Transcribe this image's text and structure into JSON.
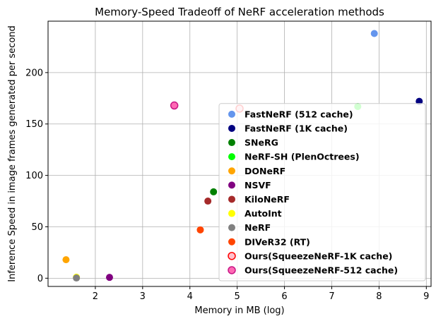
{
  "chart_data": {
    "type": "scatter",
    "title": "Memory-Speed Tradeoff of NeRF acceleration methods",
    "xlabel": "Memory in MB (log)",
    "ylabel": "Inference Speed in image frames generated per second",
    "xlim": [
      1.0,
      9.1
    ],
    "ylim": [
      -8,
      250
    ],
    "xticks": [
      2,
      3,
      4,
      5,
      6,
      7,
      8,
      9
    ],
    "yticks": [
      0,
      50,
      100,
      150,
      200
    ],
    "grid": true,
    "legend_position": "lower right",
    "series": [
      {
        "name": "FastNeRF (512 cache)",
        "color": "#6495ED",
        "edge": "#6495ED",
        "x": 7.9,
        "y": 238
      },
      {
        "name": "FastNeRF (1K cache)",
        "color": "#000080",
        "edge": "#000080",
        "x": 8.85,
        "y": 172
      },
      {
        "name": "SNeRG",
        "color": "#008000",
        "edge": "#008000",
        "x": 4.5,
        "y": 84
      },
      {
        "name": "NeRF-SH (PlenOctrees)",
        "color": "#00FF00",
        "edge": "#00FF00",
        "x": 7.55,
        "y": 167
      },
      {
        "name": "DONeRF",
        "color": "#FFA500",
        "edge": "#FFA500",
        "x": 1.38,
        "y": 18
      },
      {
        "name": "NSVF",
        "color": "#800080",
        "edge": "#800080",
        "x": 2.3,
        "y": 0.8
      },
      {
        "name": "KiloNeRF",
        "color": "#A52A2A",
        "edge": "#A52A2A",
        "x": 4.38,
        "y": 75
      },
      {
        "name": "AutoInt",
        "color": "#FFFF00",
        "edge": "#FFFF00",
        "x": 1.6,
        "y": 1.0
      },
      {
        "name": "NeRF",
        "color": "#808080",
        "edge": "#808080",
        "x": 1.6,
        "y": 0.2
      },
      {
        "name": "DIVeR32 (RT)",
        "color": "#FF4500",
        "edge": "#FF4500",
        "x": 4.22,
        "y": 47
      },
      {
        "name": "Ours(SqueezeNeRF-1K cache)",
        "color": "#FFC0CB",
        "edge": "#FF0000",
        "x": 5.05,
        "y": 165
      },
      {
        "name": "Ours(SqueezeNeRF-512 cache)",
        "color": "#FF69B4",
        "edge": "#C71585",
        "x": 3.67,
        "y": 168
      }
    ]
  }
}
